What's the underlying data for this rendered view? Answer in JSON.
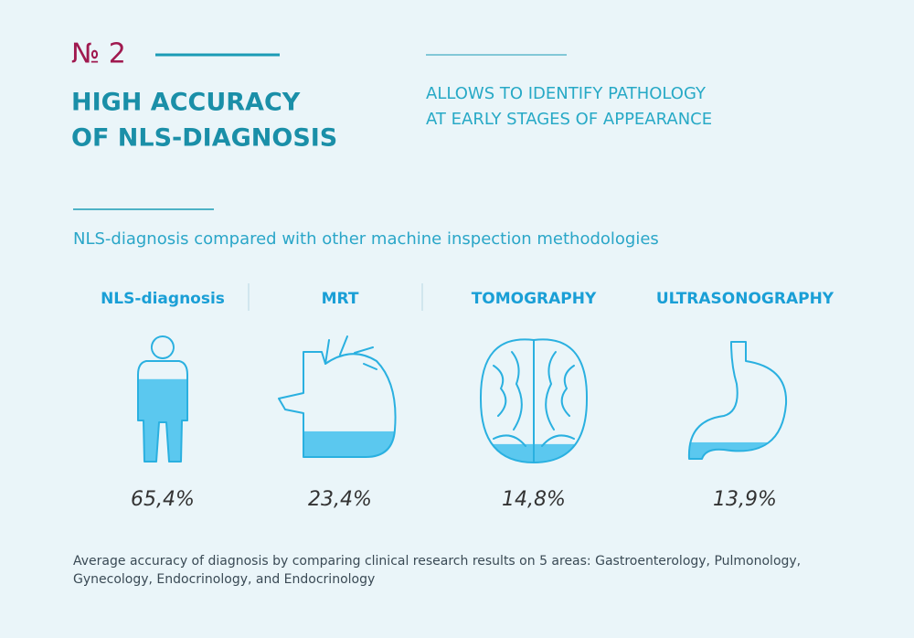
{
  "header": {
    "number": "№ 2",
    "title_lines": [
      "HIGH ACCURACY",
      "OF NLS-DIAGNOSIS"
    ],
    "subtitle_lines": [
      "ALLOWS TO IDENTIFY PATHOLOGY",
      "AT EARLY STAGES OF APPEARANCE"
    ]
  },
  "comparison": {
    "heading": "NLS-diagnosis compared with other machine inspection methodologies",
    "items": [
      {
        "name": "NLS-diagnosis",
        "value": 65.4,
        "value_label": "65,4%"
      },
      {
        "name": "MRT",
        "value": 23.4,
        "value_label": "23,4%"
      },
      {
        "name": "TOMOGRAPHY",
        "value": 14.8,
        "value_label": "14,8%"
      },
      {
        "name": "ULTRASONOGRAPHY",
        "value": 13.9,
        "value_label": "13,9%"
      }
    ]
  },
  "footnote_lines": [
    "Average accuracy of diagnosis by comparing clinical research results on 5 areas: Gastroenterology, Pulmonology,",
    "Gynecology, Endocrinology, and Endocrinology"
  ]
}
